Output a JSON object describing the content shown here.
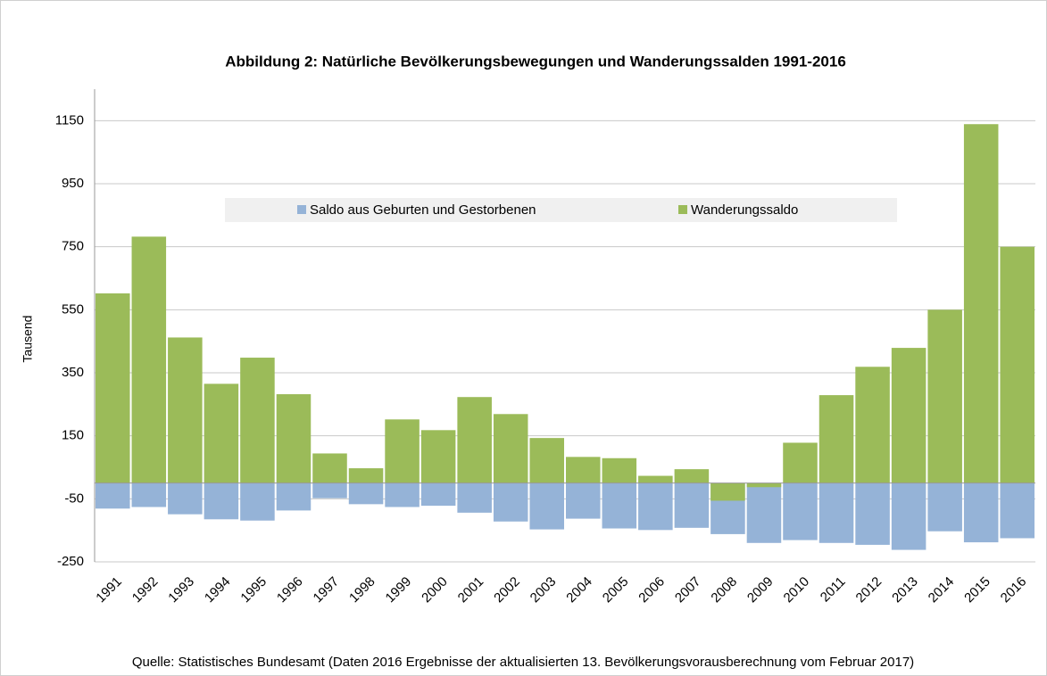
{
  "chart_data": {
    "type": "bar",
    "title": "Abbildung 2: Natürliche Bevölkerungsbewegungen und Wanderungssalden 1991-2016",
    "y_label": "Tausend",
    "source": "Quelle: Statistisches Bundesamt (Daten 2016 Ergebnisse der aktualisierten 13. Bevölkerungsvorausberechnung vom Februar 2017)",
    "categories": [
      "1991",
      "1992",
      "1993",
      "1994",
      "1995",
      "1996",
      "1997",
      "1998",
      "1999",
      "2000",
      "2001",
      "2002",
      "2003",
      "2004",
      "2005",
      "2006",
      "2007",
      "2008",
      "2009",
      "2010",
      "2011",
      "2012",
      "2013",
      "2014",
      "2015",
      "2016"
    ],
    "series": [
      {
        "name": "Saldo aus Geburten und Gestorbenen",
        "color": "#95b3d7",
        "values": [
          -81,
          -76,
          -99,
          -115,
          -119,
          -87,
          -48,
          -67,
          -76,
          -72,
          -94,
          -122,
          -147,
          -113,
          -144,
          -149,
          -142,
          -162,
          -190,
          -181,
          -190,
          -196,
          -212,
          -153,
          -188,
          -175
        ]
      },
      {
        "name": "Wanderungssaldo",
        "color": "#9bbb59",
        "values": [
          602,
          782,
          462,
          315,
          398,
          282,
          94,
          47,
          202,
          168,
          273,
          219,
          143,
          83,
          79,
          23,
          44,
          -56,
          -13,
          128,
          279,
          369,
          429,
          550,
          1139,
          750
        ]
      }
    ],
    "ylim": [
      -250,
      1250
    ],
    "yticks": [
      -250,
      -50,
      150,
      350,
      550,
      750,
      950,
      1150
    ],
    "grid": true,
    "legend": "top"
  }
}
